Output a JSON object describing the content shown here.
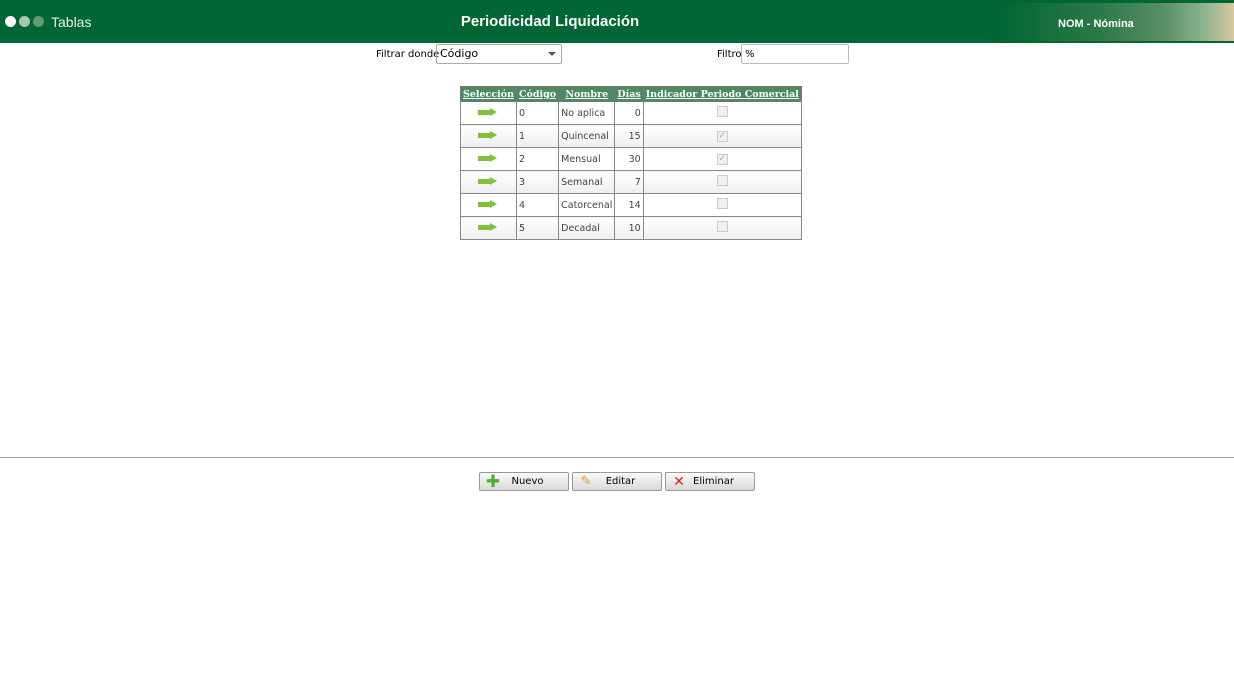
{
  "header": {
    "app_title": "Tablas",
    "page_title": "Periodicidad Liquidación",
    "module": "NOM - Nómina",
    "colors": {
      "bar": "#006633",
      "dots": [
        "#ffffff",
        "#a8c8b0",
        "#5f9a70"
      ]
    }
  },
  "filter": {
    "label": "Filtrar donde",
    "selected": "Código",
    "filtro_label": "Filtro",
    "filtro_value": "%"
  },
  "table": {
    "columns": [
      "Selección",
      "Código",
      "Nombre",
      "Días",
      "Indicador Periodo Comercial"
    ],
    "rows": [
      {
        "codigo": "0",
        "nombre": "No aplica",
        "dias": "0",
        "comercial": false
      },
      {
        "codigo": "1",
        "nombre": "Quincenal",
        "dias": "15",
        "comercial": true
      },
      {
        "codigo": "2",
        "nombre": "Mensual",
        "dias": "30",
        "comercial": true
      },
      {
        "codigo": "3",
        "nombre": "Semanal",
        "dias": "7",
        "comercial": false
      },
      {
        "codigo": "4",
        "nombre": "Catorcenal",
        "dias": "14",
        "comercial": false
      },
      {
        "codigo": "5",
        "nombre": "Decadal",
        "dias": "10",
        "comercial": false
      }
    ]
  },
  "buttons": {
    "nuevo": "Nuevo",
    "editar": "Editar",
    "eliminar": "Eliminar"
  }
}
